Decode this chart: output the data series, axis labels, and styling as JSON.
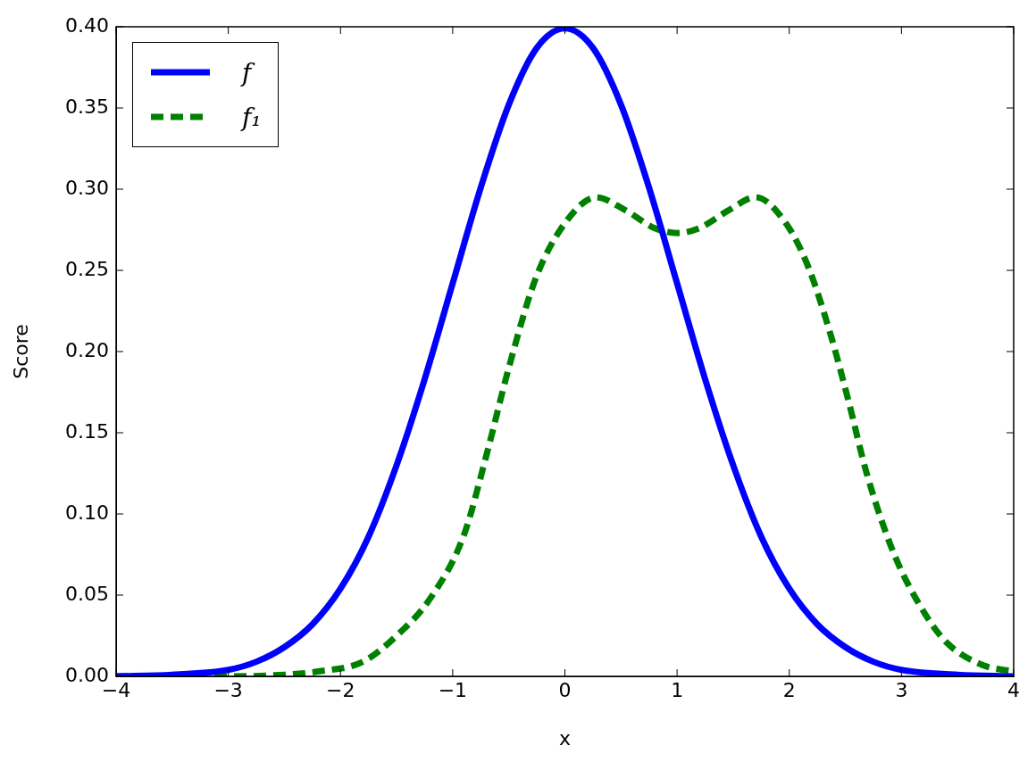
{
  "chart_data": {
    "type": "line",
    "xlabel": "x",
    "ylabel": "Score",
    "xlim": [
      -4,
      4
    ],
    "xticks": [
      {
        "value": -4,
        "label": "−4"
      },
      {
        "value": -3,
        "label": "−3"
      },
      {
        "value": -2,
        "label": "−2"
      },
      {
        "value": -1,
        "label": "−1"
      },
      0,
      1,
      2,
      3,
      4
    ],
    "ylim": [
      0,
      0.4
    ],
    "yticks": [
      {
        "value": 0,
        "label": "0.00"
      },
      0.05,
      {
        "value": 0.1,
        "label": "0.10"
      },
      0.15,
      {
        "value": 0.2,
        "label": "0.20"
      },
      0.25,
      {
        "value": 0.3,
        "label": "0.30"
      },
      0.35,
      {
        "value": 0.4,
        "label": "0.40"
      }
    ],
    "grid": false,
    "legend": "top left",
    "marker": "none",
    "series": [
      {
        "name": "f",
        "color": "#0000ff",
        "line_style": "solid",
        "x": [
          -4,
          -3.5,
          -3,
          -2.75,
          -2.5,
          -2.25,
          -2,
          -1.75,
          -1.5,
          -1.25,
          -1,
          -0.75,
          -0.5,
          -0.25,
          0,
          0.25,
          0.5,
          0.75,
          1,
          1.25,
          1.5,
          1.75,
          2,
          2.25,
          2.5,
          2.75,
          3,
          3.5,
          4
        ],
        "values": [
          0.0,
          0.001,
          0.004,
          0.009,
          0.018,
          0.032,
          0.054,
          0.086,
          0.13,
          0.183,
          0.242,
          0.301,
          0.352,
          0.387,
          0.399,
          0.387,
          0.352,
          0.301,
          0.242,
          0.183,
          0.13,
          0.086,
          0.054,
          0.032,
          0.018,
          0.009,
          0.004,
          0.001,
          0.0
        ]
      },
      {
        "name": "f₁",
        "color": "#008000",
        "line_style": "dashed",
        "x": [
          -4,
          -3,
          -2.5,
          -2.2,
          -1.8,
          -1.5,
          -1.2,
          -0.9,
          -0.7,
          -0.5,
          -0.26,
          0,
          0.28,
          0.54,
          0.8,
          1.0,
          1.2,
          1.46,
          1.7,
          1.97,
          2.17,
          2.37,
          2.53,
          2.69,
          2.93,
          3.17,
          3.4,
          3.72,
          4
        ],
        "values": [
          0.0,
          0.0,
          0.001,
          0.003,
          0.009,
          0.025,
          0.048,
          0.087,
          0.136,
          0.19,
          0.245,
          0.279,
          0.295,
          0.287,
          0.276,
          0.273,
          0.276,
          0.287,
          0.295,
          0.279,
          0.252,
          0.21,
          0.169,
          0.125,
          0.076,
          0.043,
          0.021,
          0.007,
          0.003
        ]
      }
    ]
  }
}
